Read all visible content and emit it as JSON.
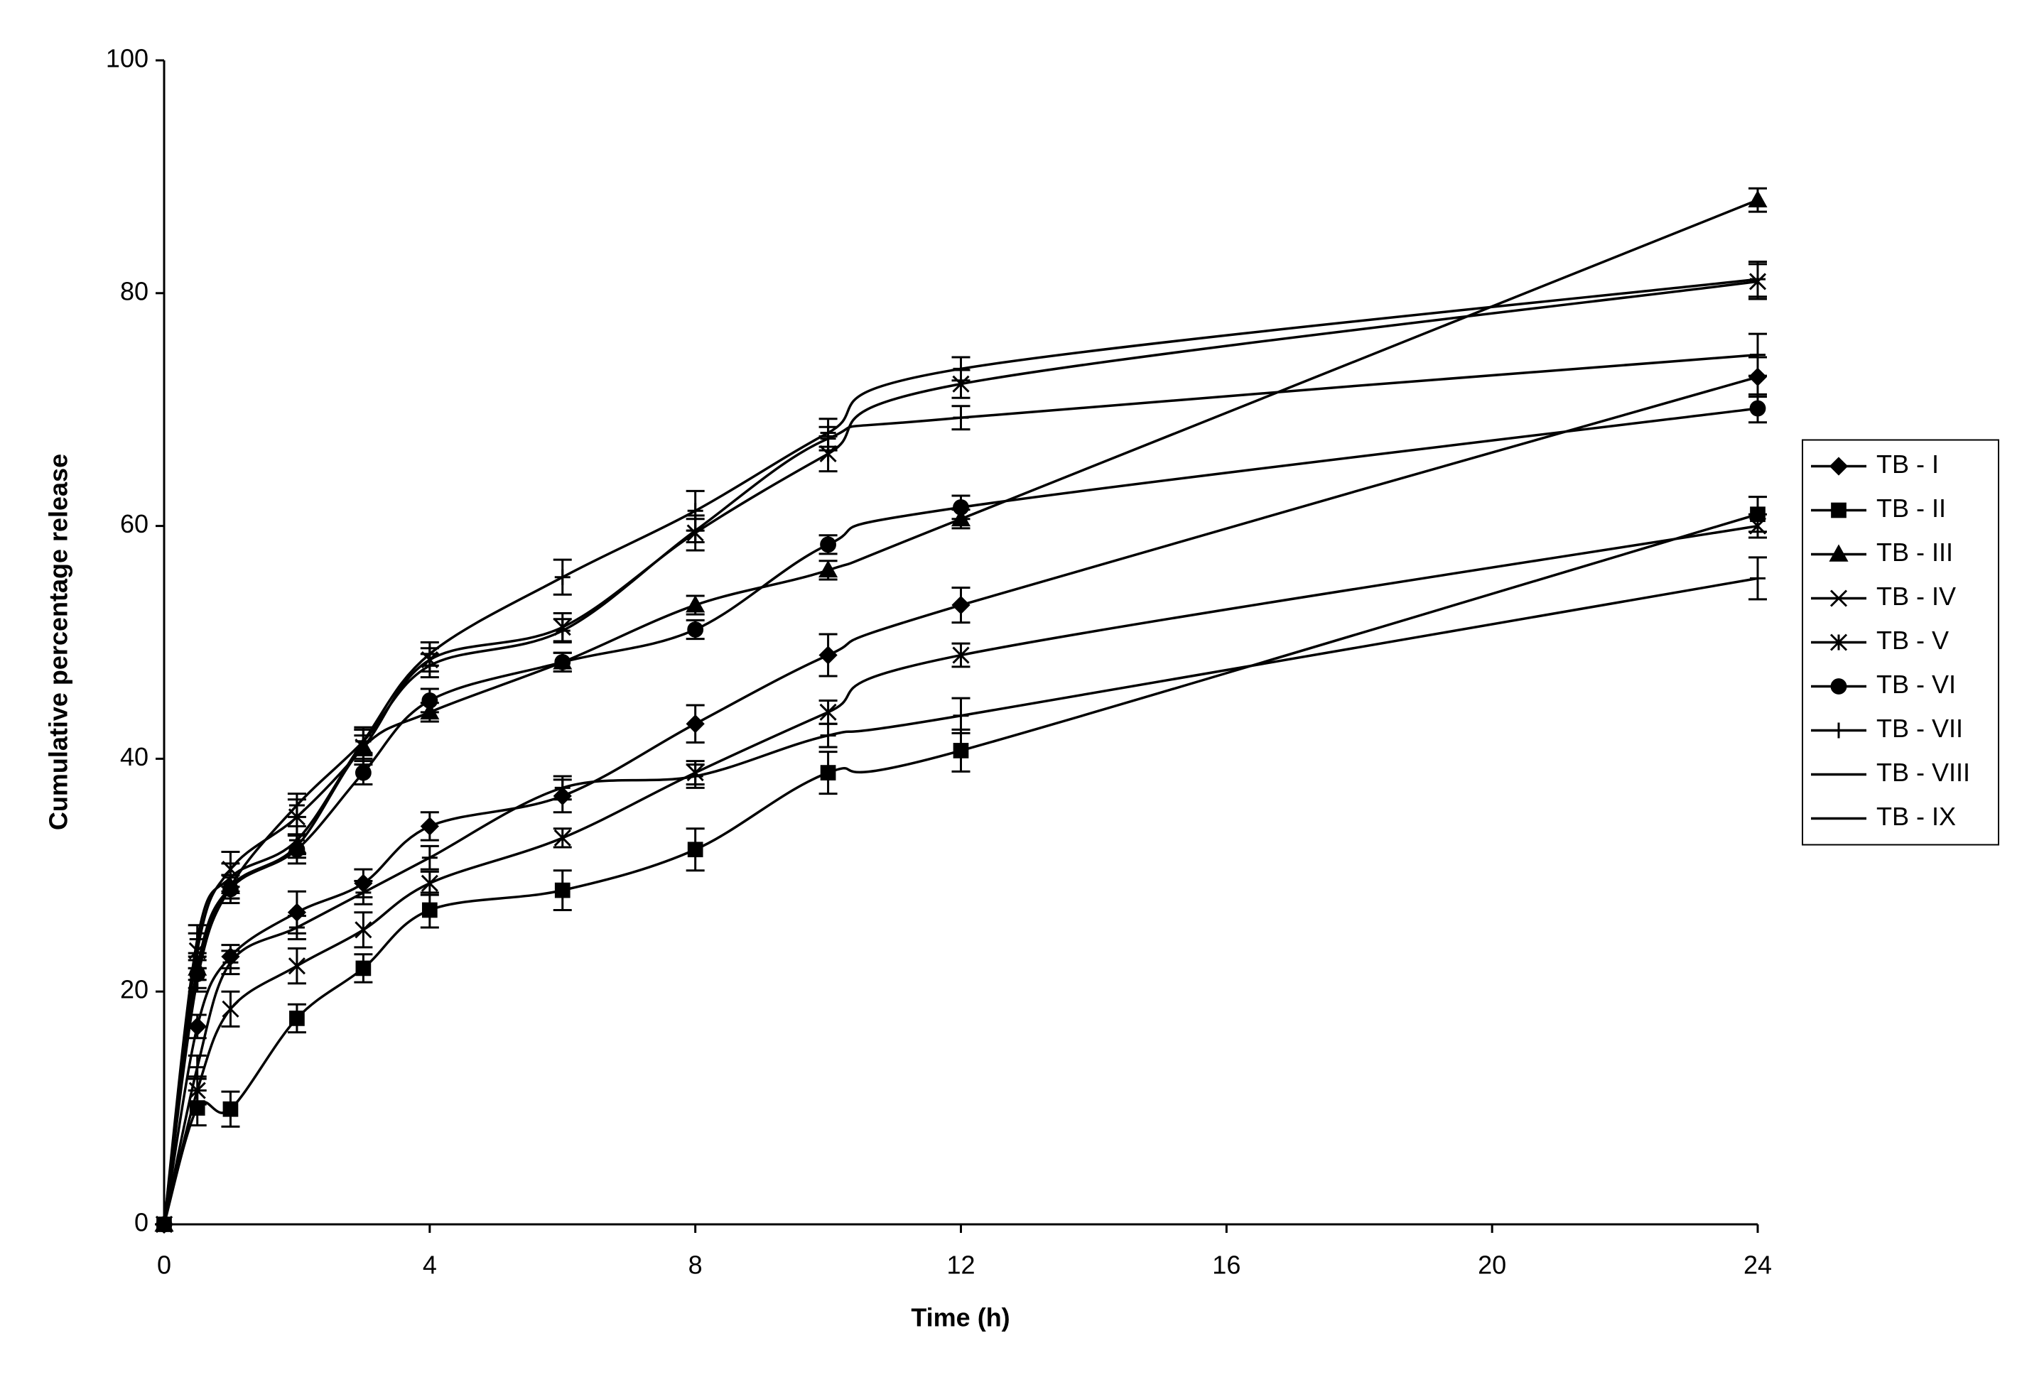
{
  "chart_data": {
    "type": "line",
    "smooth": true,
    "error_bars": true,
    "xlabel": "Time (h)",
    "ylabel": "Cumulative percentage release",
    "x": [
      0,
      0.5,
      1,
      2,
      3,
      4,
      6,
      8,
      10,
      12,
      24
    ],
    "xlim": [
      0,
      24
    ],
    "xticks": [
      0,
      4,
      8,
      12,
      16,
      20,
      24
    ],
    "ylim": [
      0,
      100
    ],
    "yticks": [
      0,
      20,
      40,
      60,
      80,
      100
    ],
    "grid": false,
    "legend": "right",
    "series": [
      {
        "name": "TB - I",
        "color": "#000000",
        "marker": "diamond",
        "values": [
          0,
          17,
          23,
          26.8,
          29.3,
          34.2,
          36.8,
          43,
          48.9,
          53.2,
          72.8
        ],
        "errors": [
          0,
          1,
          1,
          1.8,
          1.2,
          1.2,
          1.4,
          1.6,
          1.8,
          1.5,
          1.7
        ]
      },
      {
        "name": "TB - II",
        "color": "#000000",
        "marker": "square",
        "values": [
          0,
          10,
          9.9,
          17.7,
          22,
          27,
          28.7,
          32.2,
          38.8,
          40.7,
          61
        ],
        "errors": [
          0,
          1.5,
          1.5,
          1.2,
          1.2,
          1.5,
          1.7,
          1.8,
          1.8,
          1.8,
          1.5
        ]
      },
      {
        "name": "TB - III",
        "color": "#000000",
        "marker": "triangle",
        "values": [
          0,
          22,
          29,
          32.5,
          41,
          44,
          48.3,
          53.2,
          56.2,
          60.6,
          88
        ],
        "errors": [
          0,
          1,
          1,
          1,
          1,
          0.8,
          0.8,
          0.8,
          0.8,
          0.8,
          1
        ]
      },
      {
        "name": "TB - IV",
        "color": "#000000",
        "marker": "x",
        "values": [
          0,
          11.5,
          18.5,
          22.2,
          25.3,
          29.3,
          33.2,
          38.8,
          44,
          48.9,
          60
        ],
        "errors": [
          0,
          1.2,
          1.5,
          1.5,
          1.5,
          1,
          0.8,
          1,
          1,
          1,
          1
        ]
      },
      {
        "name": "TB - V",
        "color": "#000000",
        "marker": "star",
        "values": [
          0,
          23.5,
          30.5,
          35,
          41,
          48.5,
          51.3,
          59.4,
          66.2,
          72.2,
          81
        ],
        "errors": [
          0,
          1.5,
          1.5,
          1.5,
          1.5,
          1,
          1.2,
          1.5,
          1.5,
          1.2,
          1.5
        ]
      },
      {
        "name": "TB - VI",
        "color": "#000000",
        "marker": "circle",
        "values": [
          0,
          21.5,
          28.8,
          32.2,
          38.8,
          45,
          48.3,
          51.1,
          58.4,
          61.6,
          70.1
        ],
        "errors": [
          0,
          1.2,
          1.2,
          1.2,
          1,
          1,
          0.8,
          0.8,
          0.8,
          1,
          1.2
        ]
      },
      {
        "name": "TB - VII",
        "color": "#000000",
        "marker": "plus",
        "values": [
          0,
          24.5,
          29.8,
          33,
          41.5,
          49,
          55.6,
          61.3,
          68,
          73.5,
          81.2
        ],
        "errors": [
          0,
          1.2,
          1.2,
          1.2,
          1.2,
          1,
          1.5,
          1.7,
          1.2,
          1,
          1.5
        ]
      },
      {
        "name": "TB - VIII",
        "color": "#000000",
        "marker": "dash",
        "values": [
          0,
          13.5,
          22.5,
          25.5,
          28.5,
          31.5,
          37.5,
          38.5,
          42,
          43.7,
          55.5
        ],
        "errors": [
          0,
          1,
          1,
          1,
          1,
          1,
          1,
          1,
          1,
          1.5,
          1.8
        ]
      },
      {
        "name": "TB - IX",
        "color": "#000000",
        "marker": "dash",
        "values": [
          0,
          21,
          29,
          36,
          41.5,
          48,
          51,
          59.6,
          67.5,
          69.3,
          74.7
        ],
        "errors": [
          0,
          1,
          1,
          1,
          1,
          1,
          1,
          1,
          1,
          1,
          1.8
        ]
      }
    ]
  }
}
